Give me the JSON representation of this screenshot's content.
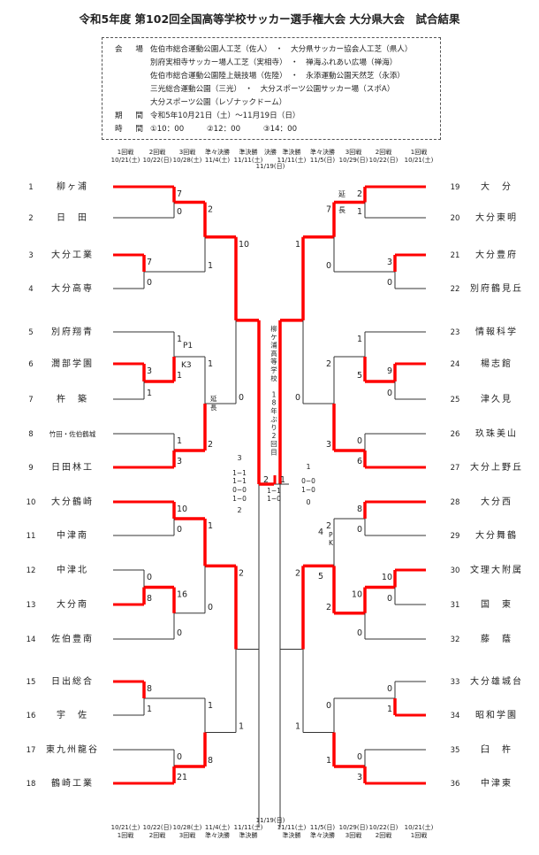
{
  "title": "令和5年度 第102回全国高等学校サッカー選手権大会 大分県大会　試合結果",
  "info": {
    "venue_label": "会 場",
    "venues": [
      "佐伯市総合運動公園人工芝（佐人）　・　大分県サッカー協会人工芝（県人）",
      "別府実相寺サッカー場人工芝（実相寺）　・　禅海ふれあい広場（禅海）",
      "佐伯市総合運動公園陸上競技場（佐陸）　・　永添運動公園天然芝（永添）",
      "三光総合運動公園（三光）　・　大分スポーツ公園サッカー場（スポA）",
      "大分スポーツ公園（レゾナックドーム）"
    ],
    "period_label": "期 間",
    "period": "令和5年10月21日（土）～11月19日（日）",
    "time_label": "時 間",
    "times": "①10：00　　　②12：00　　　③14：00"
  },
  "rounds_left": [
    {
      "label": "1回戦",
      "date": "10/21(土)"
    },
    {
      "label": "2回戦",
      "date": "10/22(日)"
    },
    {
      "label": "3回戦",
      "date": "10/28(土)"
    },
    {
      "label": "準々決勝",
      "date": "11/4(土)"
    },
    {
      "label": "準決勝",
      "date": "11/11(土)"
    }
  ],
  "final_round": {
    "label": "決勝",
    "date": "11/19(日)"
  },
  "rounds_right": [
    {
      "label": "準決勝",
      "date": "11/11(土)"
    },
    {
      "label": "準々決勝",
      "date": "11/5(日)"
    },
    {
      "label": "3回戦",
      "date": "10/29(日)"
    },
    {
      "label": "2回戦",
      "date": "10/22(日)"
    },
    {
      "label": "1回戦",
      "date": "10/21(土)"
    }
  ],
  "teams_left": [
    {
      "num": "1",
      "name": "柳ヶ浦"
    },
    {
      "num": "2",
      "name": "日　田"
    },
    {
      "num": "3",
      "name": "大分工業"
    },
    {
      "num": "4",
      "name": "大分高専"
    },
    {
      "num": "5",
      "name": "別府翔青"
    },
    {
      "num": "6",
      "name": "濶部学園"
    },
    {
      "num": "7",
      "name": "杵　築"
    },
    {
      "num": "8",
      "name": "竹田・佐伯鶴城"
    },
    {
      "num": "9",
      "name": "日田林工"
    },
    {
      "num": "10",
      "name": "大分鶴崎"
    },
    {
      "num": "11",
      "name": "中津南"
    },
    {
      "num": "12",
      "name": "中津北"
    },
    {
      "num": "13",
      "name": "大分南"
    },
    {
      "num": "14",
      "name": "佐伯豊南"
    },
    {
      "num": "15",
      "name": "日出総合"
    },
    {
      "num": "16",
      "name": "宇　佐"
    },
    {
      "num": "17",
      "name": "東九州龍谷"
    },
    {
      "num": "18",
      "name": "鶴崎工業"
    }
  ],
  "teams_right": [
    {
      "num": "19",
      "name": "大　分"
    },
    {
      "num": "20",
      "name": "大分東明"
    },
    {
      "num": "21",
      "name": "大分豊府"
    },
    {
      "num": "22",
      "name": "別府鶴見丘"
    },
    {
      "num": "23",
      "name": "情報科学"
    },
    {
      "num": "24",
      "name": "楊志館"
    },
    {
      "num": "25",
      "name": "津久見"
    },
    {
      "num": "26",
      "name": "玖珠美山"
    },
    {
      "num": "27",
      "name": "大分上野丘"
    },
    {
      "num": "28",
      "name": "大分西"
    },
    {
      "num": "29",
      "name": "大分舞鶴"
    },
    {
      "num": "30",
      "name": "文理大附属"
    },
    {
      "num": "31",
      "name": "国　東"
    },
    {
      "num": "32",
      "name": "藤　蔭"
    },
    {
      "num": "33",
      "name": "大分雄城台"
    },
    {
      "num": "34",
      "name": "昭和学園"
    },
    {
      "num": "35",
      "name": "臼　杵"
    },
    {
      "num": "36",
      "name": "中津東"
    }
  ],
  "scores_left": [
    {
      "top": "7",
      "bottom": "0"
    },
    {
      "top": "7",
      "bottom": "0"
    },
    {
      "top": "2",
      "bottom": "1"
    },
    {
      "top": "3",
      "bottom": "1"
    },
    {
      "top": "1",
      "bottom": "1",
      "pk_top": "P1",
      "pk_bottom": "K3",
      "winner": "bottom"
    },
    {
      "top": "1",
      "bottom": "3"
    },
    {
      "top": "1",
      "bottom": "2",
      "note": "延長"
    },
    {
      "top": "10",
      "bottom": "0"
    },
    {
      "top": "10",
      "bottom": "0"
    },
    {
      "top": "0",
      "bottom": "8"
    },
    {
      "top": "16",
      "bottom": "0"
    },
    {
      "top": "1",
      "bottom": "0"
    },
    {
      "top": "8",
      "bottom": "1"
    },
    {
      "top": "0",
      "bottom": "21"
    },
    {
      "top": "1",
      "bottom": "8"
    },
    {
      "top": "2",
      "bottom": "1"
    }
  ],
  "scores_right": [
    {
      "top": "2",
      "bottom": "1",
      "note_top": "延",
      "note_bottom": "長"
    },
    {
      "top": "3",
      "bottom": "0"
    },
    {
      "top": "7",
      "bottom": "0"
    },
    {
      "top": "9",
      "bottom": "0"
    },
    {
      "top": "1",
      "bottom": "5"
    },
    {
      "top": "0",
      "bottom": "6"
    },
    {
      "top": "2",
      "bottom": "3"
    },
    {
      "top": "1",
      "bottom": "0"
    },
    {
      "top": "8",
      "bottom": "0"
    },
    {
      "top": "10",
      "bottom": "0"
    },
    {
      "top": "10",
      "bottom": "0"
    },
    {
      "top": "2",
      "bottom": "2",
      "pk_top": "4",
      "pk_bottom": "5",
      "pk_mark_top": "P",
      "pk_mark_bottom": "K",
      "winner": "bottom"
    },
    {
      "top": "0",
      "bottom": "1"
    },
    {
      "top": "0",
      "bottom": "3"
    },
    {
      "top": "0",
      "bottom": "1"
    },
    {
      "top": "2",
      "bottom": "1"
    }
  ],
  "semifinal_left": {
    "top": "3",
    "bottom": "2",
    "halves_top": [
      "1−1",
      "1−1"
    ],
    "halves_bottom": [
      "0−0",
      "1−0"
    ]
  },
  "semifinal_right": {
    "top": "1",
    "bottom": "0",
    "halves": [
      "0−0",
      "1−0"
    ]
  },
  "final": {
    "left": "2",
    "right": "1",
    "halves": [
      "1−1",
      "1−0"
    ],
    "winner": "left"
  },
  "champion_note": [
    "柳",
    "ケ",
    "浦",
    "高",
    "等",
    "学",
    "校",
    "",
    "1",
    "8",
    "年",
    "ぶ",
    "り",
    "2",
    "回",
    "目"
  ],
  "colors": {
    "winner_line": "#ff0000",
    "line": "#333333"
  }
}
